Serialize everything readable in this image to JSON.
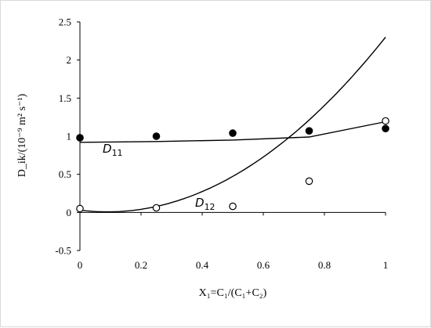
{
  "chart_data": {
    "type": "scatter",
    "xlabel": "X₁=C₁/(C₁+C₂)",
    "ylabel": "D_ik/(10⁻⁹ m² s⁻¹)",
    "xlim": [
      0,
      1
    ],
    "ylim": [
      -0.5,
      2.5
    ],
    "x_ticks": [
      "0",
      "0.2",
      "0.4",
      "0.6",
      "0.8",
      "1"
    ],
    "y_ticks": [
      "-0.5",
      "0",
      "0.5",
      "1",
      "1.5",
      "2",
      "2.5"
    ],
    "grid": false,
    "series": [
      {
        "name": "D11",
        "label_main": "D",
        "label_sub": "11",
        "marker": "filled-circle",
        "points": [
          [
            0,
            0.98
          ],
          [
            0.25,
            1.0
          ],
          [
            0.5,
            1.04
          ],
          [
            0.75,
            1.07
          ],
          [
            1.0,
            1.1
          ]
        ],
        "fit": [
          [
            0,
            0.92
          ],
          [
            0.25,
            0.93
          ],
          [
            0.5,
            0.95
          ],
          [
            0.75,
            0.99
          ],
          [
            1.0,
            1.19
          ]
        ]
      },
      {
        "name": "D12",
        "label_main": "D",
        "label_sub": "12",
        "marker": "open-circle",
        "points": [
          [
            0,
            0.05
          ],
          [
            0.25,
            0.06
          ],
          [
            0.5,
            0.08
          ],
          [
            0.75,
            0.41
          ],
          [
            1.0,
            1.2
          ]
        ],
        "fit_quadratic": [
          0.03,
          -0.5,
          2.77
        ]
      }
    ],
    "colors": {
      "marker": "#000000",
      "line": "#000000",
      "axis": "#000000"
    }
  }
}
